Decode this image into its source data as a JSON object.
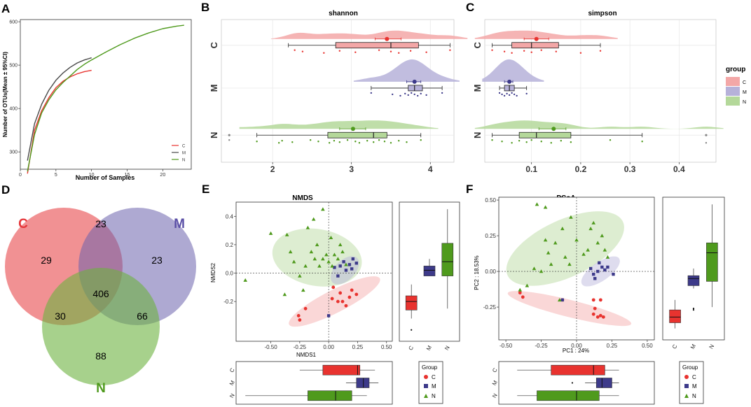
{
  "figure": {
    "panel_letters": [
      "A",
      "B",
      "C",
      "D",
      "E",
      "F"
    ]
  },
  "colors": {
    "C": "#e8332f",
    "M": "#3d3a8a",
    "N": "#4f9a1d",
    "C_fill": "#f3a7a7",
    "M_fill": "#b6b1d9",
    "N_fill": "#b4d89a"
  },
  "chart_data": [
    {
      "id": "A",
      "type": "line",
      "xlabel": "Number of Samples",
      "ylabel": "Number of OTUs(Mean ± 95%CI)",
      "xlim": [
        0,
        24
      ],
      "ylim": [
        260,
        605
      ],
      "xticks": [
        0,
        5,
        10,
        15,
        20
      ],
      "yticks": [
        300,
        400,
        500,
        600
      ],
      "legend": [
        "C",
        "M",
        "N"
      ],
      "series": [
        {
          "name": "C",
          "x": [
            1,
            2,
            3,
            4,
            5,
            6,
            7,
            8,
            9,
            10
          ],
          "y": [
            250,
            350,
            395,
            425,
            448,
            463,
            473,
            480,
            485,
            488
          ]
        },
        {
          "name": "M",
          "x": [
            1,
            2,
            3,
            4,
            5,
            6,
            7,
            8,
            9,
            10
          ],
          "y": [
            280,
            365,
            410,
            442,
            465,
            482,
            495,
            505,
            512,
            517
          ]
        },
        {
          "name": "N",
          "x": [
            1,
            2,
            3,
            4,
            5,
            6,
            7,
            8,
            9,
            10,
            12,
            14,
            16,
            18,
            20,
            22,
            23
          ],
          "y": [
            255,
            340,
            390,
            420,
            443,
            460,
            475,
            490,
            502,
            512,
            530,
            547,
            562,
            574,
            584,
            590,
            592
          ]
        }
      ]
    },
    {
      "id": "B",
      "type": "boxplot",
      "title": "shannon",
      "groups": [
        "C",
        "M",
        "N"
      ],
      "xlim": [
        1.35,
        4.3
      ],
      "xticks": [
        2,
        3,
        4
      ],
      "boxes": [
        {
          "group": "C",
          "min": 2.2,
          "q1": 2.8,
          "median": 3.5,
          "q3": 3.85,
          "max": 4.25,
          "mean": 3.45,
          "ci": [
            3.3,
            3.63
          ],
          "points": [
            2.28,
            2.38,
            2.65,
            2.85,
            3.05,
            3.35,
            3.5,
            3.6,
            3.75,
            3.95,
            4.25
          ]
        },
        {
          "group": "M",
          "min": 3.25,
          "q1": 3.72,
          "median": 3.8,
          "q3": 3.9,
          "max": 4.15,
          "mean": 3.8,
          "ci": [
            3.7,
            3.88
          ],
          "points": [
            3.25,
            3.52,
            3.62,
            3.68,
            3.72,
            3.76,
            3.8,
            3.84,
            3.88,
            3.95,
            4.15
          ]
        },
        {
          "group": "N",
          "min": 1.8,
          "q1": 2.7,
          "median": 3.28,
          "q3": 3.45,
          "max": 3.88,
          "mean": 3.02,
          "ci": [
            2.85,
            3.18
          ],
          "points": [
            1.45,
            1.8,
            2.08,
            2.12,
            2.25,
            2.48,
            2.58,
            2.72,
            2.78,
            2.85,
            2.95,
            3.05,
            3.1,
            3.2,
            3.28,
            3.35,
            3.42,
            3.5,
            3.6,
            3.7,
            3.88
          ]
        }
      ]
    },
    {
      "id": "C",
      "type": "boxplot",
      "title": "simpson",
      "groups": [
        "C",
        "M",
        "N"
      ],
      "xlim": [
        0.005,
        0.475
      ],
      "xticks": [
        0.1,
        0.2,
        0.3,
        0.4
      ],
      "boxes": [
        {
          "group": "C",
          "min": 0.02,
          "q1": 0.06,
          "median": 0.1,
          "q3": 0.155,
          "max": 0.24,
          "mean": 0.11,
          "ci": [
            0.085,
            0.135
          ],
          "points": [
            0.02,
            0.045,
            0.06,
            0.085,
            0.1,
            0.12,
            0.15,
            0.2,
            0.24
          ]
        },
        {
          "group": "M",
          "min": 0.035,
          "q1": 0.045,
          "median": 0.055,
          "q3": 0.065,
          "max": 0.09,
          "mean": 0.055,
          "ci": [
            0.045,
            0.062
          ],
          "points": [
            0.035,
            0.04,
            0.045,
            0.05,
            0.055,
            0.06,
            0.065,
            0.07,
            0.09
          ]
        },
        {
          "group": "N",
          "min": 0.02,
          "q1": 0.075,
          "median": 0.11,
          "q3": 0.18,
          "max": 0.325,
          "mean": 0.145,
          "ci": [
            0.115,
            0.17
          ],
          "points": [
            0.02,
            0.04,
            0.06,
            0.075,
            0.09,
            0.1,
            0.12,
            0.14,
            0.16,
            0.18,
            0.26,
            0.325,
            0.455
          ]
        }
      ]
    },
    {
      "id": "D",
      "type": "venn",
      "sets": [
        "C",
        "M",
        "N"
      ],
      "counts": {
        "C_only": 29,
        "M_only": 23,
        "N_only": 88,
        "C_M": 23,
        "C_N": 30,
        "M_N": 66,
        "C_M_N": 406
      }
    },
    {
      "id": "E",
      "type": "scatter",
      "title": "NMDS",
      "xlabel": "NMDS1",
      "ylabel": "NMDS2",
      "xlim": [
        -0.8,
        0.55
      ],
      "ylim": [
        -0.48,
        0.5
      ],
      "xticks": [
        -0.5,
        -0.25,
        0,
        0.25,
        0.5
      ],
      "yticks": [
        -0.2,
        0,
        0.2,
        0.4
      ],
      "legend_title": "Group",
      "points": {
        "C": [
          [
            -0.26,
            -0.3
          ],
          [
            -0.25,
            -0.33
          ],
          [
            -0.2,
            -0.25
          ],
          [
            0.04,
            -0.1
          ],
          [
            0.1,
            -0.14
          ],
          [
            0.12,
            -0.2
          ],
          [
            0.18,
            -0.17
          ],
          [
            0.2,
            -0.12
          ],
          [
            0.08,
            -0.2
          ],
          [
            0.15,
            -0.23
          ],
          [
            0.24,
            -0.15
          ],
          [
            0.03,
            -0.18
          ]
        ],
        "M": [
          [
            0.05,
            0.04
          ],
          [
            0.1,
            0.05
          ],
          [
            0.13,
            0.08
          ],
          [
            0.18,
            0.06
          ],
          [
            0.2,
            0.03
          ],
          [
            0.21,
            0.1
          ],
          [
            0.24,
            0.07
          ],
          [
            0.15,
            0.02
          ],
          [
            0.08,
            -0.02
          ],
          [
            0.0,
            -0.3
          ]
        ],
        "N": [
          [
            -0.72,
            -0.05
          ],
          [
            -0.5,
            0.28
          ],
          [
            -0.36,
            0.27
          ],
          [
            -0.33,
            0.15
          ],
          [
            -0.3,
            0.08
          ],
          [
            -0.25,
            -0.02
          ],
          [
            -0.2,
            0.05
          ],
          [
            -0.18,
            0.32
          ],
          [
            -0.15,
            0.15
          ],
          [
            -0.12,
            0.1
          ],
          [
            -0.1,
            0.2
          ],
          [
            -0.08,
            0.05
          ],
          [
            -0.05,
            0.45
          ],
          [
            -0.05,
            0.1
          ],
          [
            -0.02,
            0.13
          ],
          [
            0.0,
            0.08
          ],
          [
            0.03,
            0.05
          ],
          [
            0.05,
            0.13
          ],
          [
            0.08,
            0.1
          ],
          [
            0.1,
            0.2
          ],
          [
            0.12,
            0.15
          ],
          [
            0.15,
            0.06
          ],
          [
            -0.13,
            0.38
          ],
          [
            -0.38,
            -0.15
          ],
          [
            -0.22,
            -0.12
          ],
          [
            0.02,
            0.25
          ]
        ]
      },
      "ellipses": [
        {
          "group": "N",
          "cx": -0.1,
          "cy": 0.11,
          "rx": 0.39,
          "ry": 0.2,
          "angle": -10
        },
        {
          "group": "M",
          "cx": 0.14,
          "cy": 0.02,
          "rx": 0.15,
          "ry": 0.07,
          "angle": 45
        },
        {
          "group": "C",
          "cx": 0.05,
          "cy": -0.2,
          "rx": 0.44,
          "ry": 0.08,
          "angle": 27
        }
      ],
      "side_box": {
        "ylim": [
          -0.48,
          0.5
        ],
        "C": {
          "min": -0.32,
          "q1": -0.26,
          "median": -0.2,
          "q3": -0.16,
          "max": -0.08,
          "outliers": [
            -0.4
          ]
        },
        "M": {
          "min": -0.02,
          "q1": -0.02,
          "median": 0.02,
          "q3": 0.05,
          "max": 0.1
        },
        "N": {
          "min": -0.25,
          "q1": -0.02,
          "median": 0.08,
          "q3": 0.21,
          "max": 0.45
        }
      },
      "bottom_box": {
        "xlim": [
          -0.8,
          0.55
        ],
        "C": {
          "min": -0.25,
          "q1": -0.05,
          "median": 0.25,
          "q3": 0.27,
          "max": 0.4
        },
        "M": {
          "min": 0.15,
          "q1": 0.24,
          "median": 0.3,
          "q3": 0.35,
          "max": 0.43
        },
        "N": {
          "min": -0.72,
          "q1": -0.18,
          "median": 0.06,
          "q3": 0.2,
          "max": 0.33
        }
      }
    },
    {
      "id": "F",
      "type": "scatter",
      "title": "PCoA",
      "xlabel": "PC1 : 24%",
      "ylabel": "PC2 : 18.53%",
      "xlim": [
        -0.55,
        0.55
      ],
      "ylim": [
        -0.48,
        0.52
      ],
      "xticks": [
        -0.5,
        -0.25,
        0,
        0.25,
        0.5
      ],
      "yticks": [
        -0.25,
        0,
        0.25,
        0.5
      ],
      "legend_title": "Group",
      "points": {
        "C": [
          [
            -0.4,
            -0.15
          ],
          [
            -0.38,
            -0.18
          ],
          [
            -0.1,
            -0.2
          ],
          [
            0.12,
            -0.2
          ],
          [
            0.17,
            -0.2
          ],
          [
            0.12,
            -0.3
          ],
          [
            0.15,
            -0.32
          ],
          [
            0.17,
            -0.31
          ],
          [
            0.19,
            -0.32
          ],
          [
            0.13,
            -0.26
          ]
        ],
        "M": [
          [
            0.1,
            0.02
          ],
          [
            0.12,
            -0.02
          ],
          [
            0.15,
            0.0
          ],
          [
            0.18,
            0.03
          ],
          [
            0.2,
            0.01
          ],
          [
            0.22,
            0.03
          ],
          [
            0.16,
            0.06
          ],
          [
            0.13,
            -0.05
          ],
          [
            0.26,
            -0.02
          ],
          [
            -0.1,
            -0.2
          ]
        ],
        "N": [
          [
            -0.4,
            -0.13
          ],
          [
            -0.3,
            0.02
          ],
          [
            -0.25,
            0.0
          ],
          [
            -0.22,
            0.22
          ],
          [
            -0.2,
            0.13
          ],
          [
            -0.18,
            0.05
          ],
          [
            -0.15,
            0.2
          ],
          [
            -0.1,
            0.3
          ],
          [
            -0.08,
            0.1
          ],
          [
            -0.05,
            0.05
          ],
          [
            0.0,
            0.22
          ],
          [
            0.05,
            0.12
          ],
          [
            0.08,
            0.15
          ],
          [
            0.1,
            0.3
          ],
          [
            0.12,
            0.34
          ],
          [
            0.15,
            0.2
          ],
          [
            0.18,
            0.25
          ],
          [
            0.2,
            0.15
          ],
          [
            -0.28,
            0.47
          ],
          [
            -0.22,
            0.45
          ],
          [
            -0.12,
            -0.2
          ],
          [
            -0.04,
            0.38
          ],
          [
            0.22,
            0.1
          ],
          [
            -0.35,
            -0.1
          ]
        ]
      },
      "ellipses": [
        {
          "group": "N",
          "cx": -0.08,
          "cy": 0.16,
          "rx": 0.45,
          "ry": 0.2,
          "angle": 25
        },
        {
          "group": "M",
          "cx": 0.17,
          "cy": 0.0,
          "rx": 0.16,
          "ry": 0.065,
          "angle": 35
        },
        {
          "group": "C",
          "cx": -0.05,
          "cy": -0.26,
          "rx": 0.45,
          "ry": 0.06,
          "angle": -14
        }
      ],
      "side_box": {
        "ylim": [
          -0.48,
          0.52
        ],
        "C": {
          "min": -0.4,
          "q1": -0.36,
          "median": -0.32,
          "q3": -0.27,
          "max": -0.2
        },
        "M": {
          "min": -0.12,
          "q1": -0.1,
          "median": -0.05,
          "q3": -0.03,
          "max": 0.02,
          "outliers": [
            -0.27,
            -0.26
          ]
        },
        "N": {
          "min": -0.25,
          "q1": -0.07,
          "median": 0.13,
          "q3": 0.2,
          "max": 0.47
        }
      },
      "bottom_box": {
        "xlim": [
          -0.55,
          0.55
        ],
        "C": {
          "min": -0.42,
          "q1": -0.18,
          "median": 0.12,
          "q3": 0.2,
          "max": 0.3
        },
        "M": {
          "min": 0.06,
          "q1": 0.14,
          "median": 0.18,
          "q3": 0.25,
          "max": 0.3,
          "outliers": [
            -0.03
          ]
        },
        "N": {
          "min": -0.42,
          "q1": -0.28,
          "median": 0.0,
          "q3": 0.16,
          "max": 0.3
        }
      }
    }
  ],
  "legend": {
    "title": "group",
    "items": [
      "C",
      "M",
      "N"
    ]
  }
}
